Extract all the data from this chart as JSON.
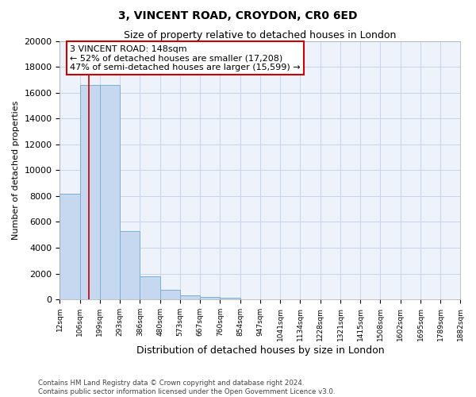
{
  "title": "3, VINCENT ROAD, CROYDON, CR0 6ED",
  "subtitle": "Size of property relative to detached houses in London",
  "xlabel": "Distribution of detached houses by size in London",
  "ylabel": "Number of detached properties",
  "bar_edges": [
    12,
    106,
    199,
    293,
    386,
    480,
    573,
    667,
    760,
    854,
    947,
    1041,
    1134,
    1228,
    1321,
    1415,
    1508,
    1602,
    1695,
    1789,
    1882
  ],
  "bar_heights": [
    8200,
    16600,
    16600,
    5300,
    1800,
    750,
    300,
    200,
    100,
    0,
    0,
    0,
    0,
    0,
    0,
    0,
    0,
    0,
    0,
    0
  ],
  "bar_color": "#c5d8f0",
  "bar_edge_color": "#7bafd4",
  "property_size": 148,
  "annotation_text": "3 VINCENT ROAD: 148sqm\n← 52% of detached houses are smaller (17,208)\n47% of semi-detached houses are larger (15,599) →",
  "annotation_box_color": "#ffffff",
  "annotation_box_edge_color": "#cc0000",
  "red_line_color": "#cc0000",
  "grid_color": "#c8d4e8",
  "background_color": "#eef2fa",
  "ylim": [
    0,
    20000
  ],
  "yticks": [
    0,
    2000,
    4000,
    6000,
    8000,
    10000,
    12000,
    14000,
    16000,
    18000,
    20000
  ],
  "tick_labels": [
    "12sqm",
    "106sqm",
    "199sqm",
    "293sqm",
    "386sqm",
    "480sqm",
    "573sqm",
    "667sqm",
    "760sqm",
    "854sqm",
    "947sqm",
    "1041sqm",
    "1134sqm",
    "1228sqm",
    "1321sqm",
    "1415sqm",
    "1508sqm",
    "1602sqm",
    "1695sqm",
    "1789sqm",
    "1882sqm"
  ],
  "footer_text": "Contains HM Land Registry data © Crown copyright and database right 2024.\nContains public sector information licensed under the Open Government Licence v3.0.",
  "title_fontsize": 10,
  "subtitle_fontsize": 9,
  "annotation_fontsize": 8
}
